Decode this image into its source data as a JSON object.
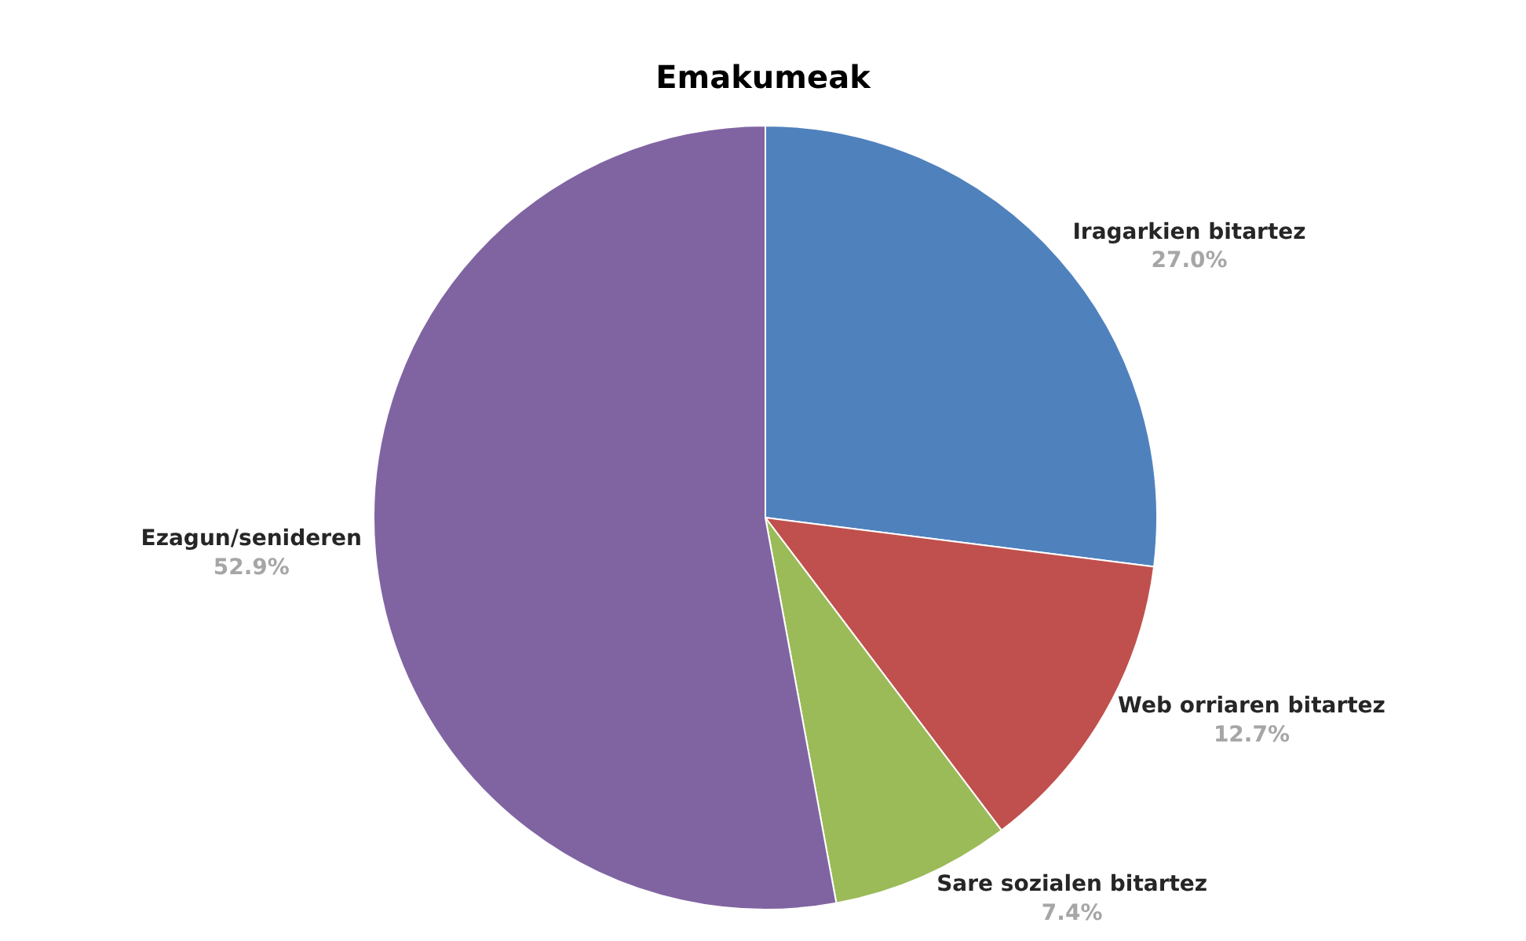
{
  "chart_data": {
    "type": "pie",
    "title": "Emakumeak",
    "categories": [
      "Iragarkien bitartez",
      "Web orriaren bitartez",
      "Sare sozialen bitartez",
      "Ezagun/senideren"
    ],
    "values": [
      27.0,
      12.7,
      7.4,
      52.9
    ],
    "value_labels": [
      "27.0%",
      "12.7%",
      "7.4%",
      "52.9%"
    ],
    "colors": [
      "#4f81bd",
      "#c0504d",
      "#9bbb59",
      "#8064a2"
    ],
    "legend": false
  }
}
